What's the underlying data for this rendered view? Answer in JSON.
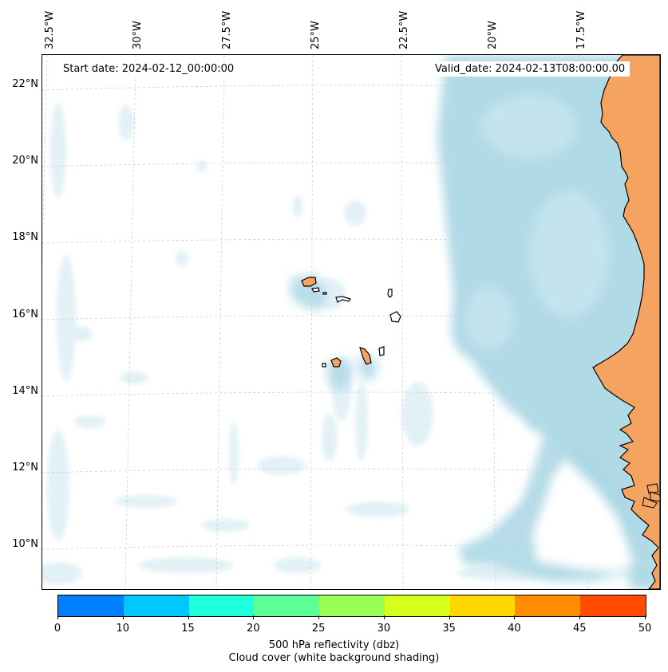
{
  "map": {
    "start_label": "Start date: 2024-02-12_00:00:00",
    "valid_label": "Valid_date: 2024-02-13T08:00:00.00",
    "lon_labels": [
      "32.5°W",
      "30°W",
      "27.5°W",
      "25°W",
      "22.5°W",
      "20°W",
      "17.5°W"
    ],
    "lat_labels": [
      "22°N",
      "20°N",
      "18°N",
      "16°N",
      "14°N",
      "12°N",
      "10°N"
    ],
    "land_color": "#f4a460",
    "cloud_color": "#add8e6"
  },
  "colorbar": {
    "colors": [
      "#007fff",
      "#00c8ff",
      "#1effdd",
      "#5cff95",
      "#98ff58",
      "#d6ff1e",
      "#ffd600",
      "#ff8b00",
      "#ff4c00"
    ],
    "ticks": [
      "0",
      "10",
      "15",
      "20",
      "25",
      "30",
      "35",
      "40",
      "45",
      "50"
    ],
    "label": "500 hPa reflectivity (dbz)",
    "sublabel": "Cloud cover (white background shading)"
  }
}
